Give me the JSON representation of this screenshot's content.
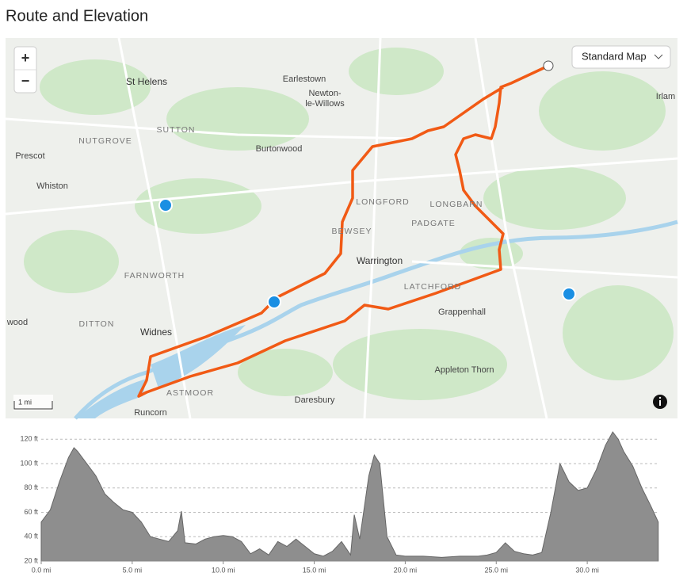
{
  "title": "Route and Elevation",
  "map": {
    "zoom_in": "+",
    "zoom_out": "−",
    "map_type": "Standard Map",
    "scale": "1 mi",
    "labels": [
      "St Helens",
      "Earlestown",
      "Newton-",
      "le-Willows",
      "Irlam",
      "SUTTON",
      "NUTGROVE",
      "Prescot",
      "Burtonwood",
      "Whiston",
      "LONGFORD",
      "LONGBARN",
      "BEWSEY",
      "PADGATE",
      "Warrington",
      "FARNWORTH",
      "LATCHFORD",
      "Grappenhall",
      "wood",
      "DITTON",
      "Widnes",
      "Appleton Thorn",
      "ASTMOOR",
      "Daresbury",
      "Runcorn"
    ]
  },
  "chart_data": {
    "type": "area",
    "x": [
      0,
      0.5,
      1.0,
      1.5,
      1.8,
      2.0,
      2.5,
      3.0,
      3.5,
      4.0,
      4.5,
      5.0,
      5.5,
      6.0,
      6.5,
      7.0,
      7.5,
      7.7,
      7.9,
      8.5,
      9.0,
      9.5,
      10.0,
      10.5,
      11.0,
      11.5,
      12.0,
      12.5,
      13.0,
      13.5,
      14.0,
      14.5,
      15.0,
      15.5,
      16.0,
      16.5,
      17.0,
      17.2,
      17.5,
      18.0,
      18.3,
      18.6,
      19.0,
      19.5,
      20.0,
      21.0,
      22.0,
      23.0,
      24.0,
      24.5,
      25.0,
      25.5,
      26.0,
      26.5,
      27.0,
      27.5,
      28.0,
      28.5,
      29.0,
      29.5,
      30.0,
      30.5,
      31.0,
      31.4,
      31.7,
      32.0,
      32.5,
      33.0,
      33.5,
      33.9
    ],
    "values": [
      52,
      62,
      85,
      105,
      113,
      110,
      100,
      90,
      75,
      68,
      62,
      60,
      52,
      40,
      38,
      36,
      45,
      61,
      35,
      34,
      38,
      40,
      41,
      40,
      36,
      26,
      30,
      25,
      36,
      32,
      38,
      32,
      26,
      24,
      28,
      36,
      25,
      58,
      38,
      90,
      107,
      100,
      40,
      25,
      24,
      24,
      23,
      24,
      24,
      25,
      27,
      35,
      28,
      26,
      25,
      27,
      60,
      100,
      85,
      78,
      80,
      95,
      115,
      126,
      120,
      110,
      98,
      80,
      65,
      52
    ],
    "color": "#8e8e8e",
    "xlim": [
      0,
      33.9
    ],
    "ylim": [
      20,
      126
    ],
    "xticks": [
      {
        "value": 0,
        "label": "0.0 mi"
      },
      {
        "value": 5,
        "label": "5.0 mi"
      },
      {
        "value": 10,
        "label": "10.0 mi"
      },
      {
        "value": 15,
        "label": "15.0 mi"
      },
      {
        "value": 20,
        "label": "20.0 mi"
      },
      {
        "value": 25,
        "label": "25.0 mi"
      },
      {
        "value": 30,
        "label": "30.0 mi"
      }
    ],
    "yticks": [
      {
        "value": 20,
        "label": "20 ft"
      },
      {
        "value": 40,
        "label": "40 ft"
      },
      {
        "value": 60,
        "label": "60 ft"
      },
      {
        "value": 80,
        "label": "80 ft"
      },
      {
        "value": 100,
        "label": "100 ft"
      },
      {
        "value": 120,
        "label": "120 ft"
      }
    ],
    "grid": true
  }
}
